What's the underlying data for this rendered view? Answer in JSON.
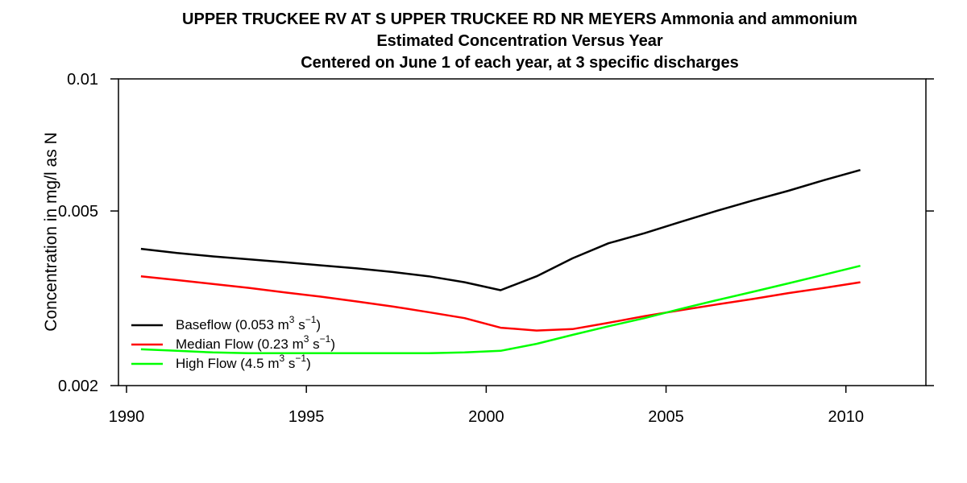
{
  "chart_data": {
    "type": "line",
    "title": "UPPER TRUCKEE RV AT S UPPER TRUCKEE RD NR MEYERS    Ammonia and ammonium",
    "subtitle": "Estimated Concentration Versus Year",
    "subtitle2": "Centered on June 1 of each year, at 3 specific discharges",
    "xlabel": "",
    "ylabel": "Concentration in mg/l as N",
    "xlim": [
      1990,
      2012
    ],
    "ylim": [
      0.002,
      0.01
    ],
    "yscale": "log",
    "xticks": [
      1990,
      1995,
      2000,
      2005,
      2010
    ],
    "yticks": [
      {
        "value": 0.002,
        "label": "0.002"
      },
      {
        "value": 0.005,
        "label": "0.005"
      },
      {
        "value": 0.01,
        "label": "0.01"
      }
    ],
    "legend_position": "bottom-left",
    "series": [
      {
        "name": "Baseflow (0.053 m",
        "name_sup1": "3",
        "name_mid": " s",
        "name_sup2": "−1",
        "name_end": ")",
        "color": "#000000",
        "x": [
          1990.4,
          1991.4,
          1992.4,
          1993.4,
          1994.4,
          1995.4,
          1996.4,
          1997.4,
          1998.4,
          1999.4,
          2000.4,
          2001.4,
          2002.4,
          2003.4,
          2004.4,
          2005.4,
          2006.4,
          2007.4,
          2008.4,
          2009.4,
          2010.4
        ],
        "y": [
          0.0041,
          0.00401,
          0.00394,
          0.00388,
          0.00382,
          0.00376,
          0.0037,
          0.00363,
          0.00355,
          0.00344,
          0.0033,
          0.00355,
          0.0039,
          0.00422,
          0.00445,
          0.00472,
          0.005,
          0.00528,
          0.00556,
          0.00588,
          0.0062
        ]
      },
      {
        "name": "Median Flow (0.23 m",
        "name_sup1": "3",
        "name_mid": " s",
        "name_sup2": "−1",
        "name_end": ")",
        "color": "#ff0000",
        "x": [
          1990.4,
          1991.4,
          1992.4,
          1993.4,
          1994.4,
          1995.4,
          1996.4,
          1997.4,
          1998.4,
          1999.4,
          2000.4,
          2001.4,
          2002.4,
          2003.4,
          2004.4,
          2005.4,
          2006.4,
          2007.4,
          2008.4,
          2009.4,
          2010.4
        ],
        "y": [
          0.00355,
          0.00348,
          0.00341,
          0.00334,
          0.00326,
          0.00319,
          0.00311,
          0.00303,
          0.00294,
          0.00285,
          0.00271,
          0.00267,
          0.00269,
          0.00278,
          0.00288,
          0.00297,
          0.00306,
          0.00315,
          0.00325,
          0.00334,
          0.00344
        ]
      },
      {
        "name": "High Flow (4.5 m",
        "name_sup1": "3",
        "name_mid": " s",
        "name_sup2": "−1",
        "name_end": ")",
        "color": "#00ff00",
        "x": [
          1990.4,
          1991.4,
          1992.4,
          1993.4,
          1994.4,
          1995.4,
          1996.4,
          1997.4,
          1998.4,
          1999.4,
          2000.4,
          2001.4,
          2002.4,
          2003.4,
          2004.4,
          2005.4,
          2006.4,
          2007.4,
          2008.4,
          2009.4,
          2010.4
        ],
        "y": [
          0.00242,
          0.0024,
          0.00238,
          0.00237,
          0.00237,
          0.00237,
          0.00237,
          0.00237,
          0.00237,
          0.00238,
          0.0024,
          0.00249,
          0.00261,
          0.00273,
          0.00285,
          0.00299,
          0.00313,
          0.00327,
          0.00342,
          0.00358,
          0.00375
        ]
      }
    ]
  }
}
